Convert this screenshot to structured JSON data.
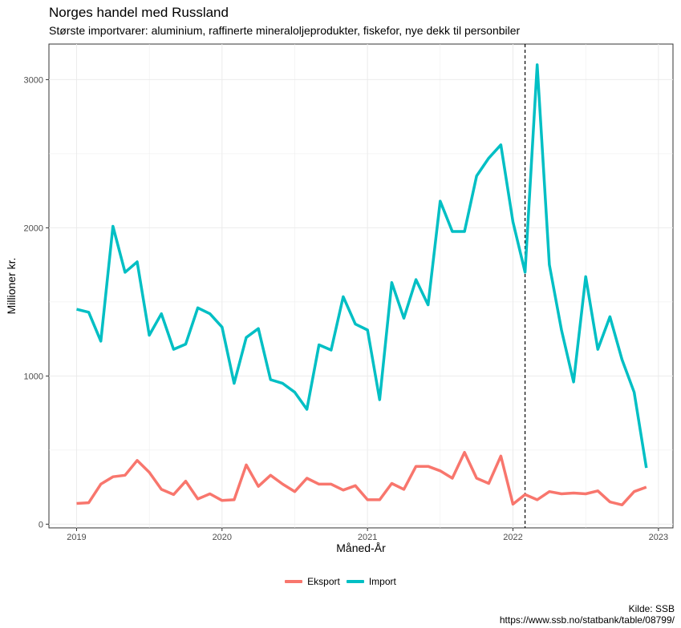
{
  "chart_data": {
    "type": "line",
    "title": "Norges handel med Russland",
    "subtitle": "Største importvarer: aluminium, raffinerte mineraloljeprodukter, fiskefor, nye dekk til personbiler",
    "xlabel": "Måned-År",
    "ylabel": "Millioner kr.",
    "x_ticks": [
      "2019",
      "2020",
      "2021",
      "2022",
      "2023"
    ],
    "y_ticks": [
      0,
      1000,
      2000,
      3000
    ],
    "xlim": [
      2018.81,
      2023.1
    ],
    "ylim": [
      -25,
      3240
    ],
    "grid": true,
    "legend_position": "bottom",
    "caption": [
      "Kilde: SSB",
      "https://www.ssb.no/statbank/table/08799/"
    ],
    "vline": {
      "x": 2022.083,
      "style": "dashed",
      "color": "#000000"
    },
    "x": [
      "2019-01",
      "2019-02",
      "2019-03",
      "2019-04",
      "2019-05",
      "2019-06",
      "2019-07",
      "2019-08",
      "2019-09",
      "2019-10",
      "2019-11",
      "2019-12",
      "2020-01",
      "2020-02",
      "2020-03",
      "2020-04",
      "2020-05",
      "2020-06",
      "2020-07",
      "2020-08",
      "2020-09",
      "2020-10",
      "2020-11",
      "2020-12",
      "2021-01",
      "2021-02",
      "2021-03",
      "2021-04",
      "2021-05",
      "2021-06",
      "2021-07",
      "2021-08",
      "2021-09",
      "2021-10",
      "2021-11",
      "2021-12",
      "2022-01",
      "2022-02",
      "2022-03",
      "2022-04",
      "2022-05",
      "2022-06",
      "2022-07",
      "2022-08",
      "2022-09",
      "2022-10",
      "2022-11",
      "2022-12"
    ],
    "series": [
      {
        "name": "Eksport",
        "color": "#F8766D",
        "values": [
          140,
          145,
          270,
          320,
          330,
          430,
          350,
          235,
          200,
          290,
          170,
          205,
          160,
          165,
          400,
          255,
          330,
          270,
          220,
          310,
          270,
          270,
          230,
          260,
          165,
          165,
          275,
          235,
          390,
          390,
          360,
          310,
          485,
          310,
          275,
          460,
          135,
          200,
          165,
          220,
          205,
          210,
          205,
          225,
          150,
          130,
          220,
          250
        ]
      },
      {
        "name": "Import",
        "color": "#00BFC4",
        "values": [
          1450,
          1430,
          1235,
          2010,
          1700,
          1770,
          1275,
          1420,
          1180,
          1215,
          1460,
          1420,
          1330,
          950,
          1260,
          1320,
          975,
          950,
          890,
          775,
          1210,
          1175,
          1535,
          1350,
          1310,
          840,
          1630,
          1390,
          1650,
          1480,
          2180,
          1975,
          1975,
          2350,
          2470,
          2560,
          2040,
          1700,
          3100,
          1750,
          1310,
          960,
          1670,
          1180,
          1400,
          1110,
          890,
          380
        ]
      }
    ]
  }
}
